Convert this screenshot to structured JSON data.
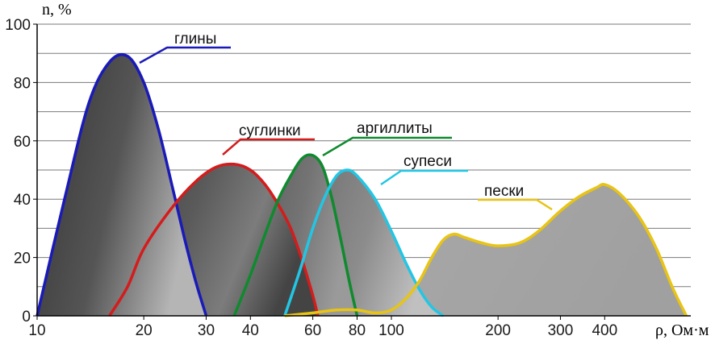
{
  "chart_data": {
    "type": "area",
    "title": "",
    "ylabel": "n, %",
    "xlabel": "ρ, Ом·м",
    "x_scale": "log",
    "ylim": [
      0,
      100
    ],
    "y_ticks": [
      0,
      20,
      40,
      60,
      80,
      100
    ],
    "x_ticks": [
      {
        "value": 10,
        "label": "10"
      },
      {
        "value": 20,
        "label": "20"
      },
      {
        "value": 30,
        "label": "30"
      },
      {
        "value": 40,
        "label": "40"
      },
      {
        "value": 60,
        "label": "60"
      },
      {
        "value": 80,
        "label": "80"
      },
      {
        "value": 100,
        "label": "100"
      },
      {
        "value": 200,
        "label": "200"
      },
      {
        "value": 300,
        "label": "300"
      },
      {
        "value": 400,
        "label": "400"
      }
    ],
    "grid": "horizontal",
    "series": [
      {
        "name": "глины",
        "color": "#1a1ab8",
        "x": [
          10,
          12,
          14,
          16,
          18,
          20,
          22,
          24,
          26,
          28,
          30
        ],
        "y": [
          0,
          41,
          73,
          87,
          89,
          80,
          64,
          45,
          27,
          12,
          0
        ]
      },
      {
        "name": "суглинки",
        "color": "#d41c1c",
        "x": [
          16,
          18,
          20,
          24,
          28,
          32,
          36,
          40,
          44,
          48,
          52,
          56,
          60,
          62
        ],
        "y": [
          0,
          10,
          23,
          37,
          46,
          51,
          52,
          50,
          45,
          38,
          30,
          19,
          7,
          0
        ]
      },
      {
        "name": "аргиллиты",
        "color": "#0f8a2e",
        "x": [
          36,
          40,
          44,
          48,
          52,
          56,
          60,
          64,
          68,
          72,
          76,
          80
        ],
        "y": [
          0,
          14,
          28,
          40,
          48,
          54,
          55,
          51,
          40,
          26,
          12,
          0
        ]
      },
      {
        "name": "супеси",
        "color": "#22c6e4",
        "x": [
          50,
          55,
          60,
          65,
          70,
          75,
          80,
          90,
          100,
          110,
          120,
          130,
          140
        ],
        "y": [
          0,
          15,
          30,
          41,
          48,
          50,
          48,
          40,
          29,
          18,
          9,
          3,
          0
        ]
      },
      {
        "name": "пески",
        "color": "#e8c414",
        "x": [
          50,
          60,
          70,
          80,
          90,
          100,
          110,
          120,
          130,
          140,
          150,
          160,
          180,
          200,
          230,
          260,
          300,
          340,
          380,
          400,
          440,
          500,
          560,
          620,
          680
        ],
        "y": [
          0,
          1,
          2,
          2,
          1,
          2,
          6,
          12,
          20,
          26,
          28,
          27,
          25,
          24,
          25,
          29,
          36,
          41,
          44,
          45,
          42,
          34,
          23,
          10,
          0
        ]
      }
    ],
    "labels": [
      {
        "text": "глины",
        "series": 0
      },
      {
        "text": "суглинки",
        "series": 1
      },
      {
        "text": "аргиллиты",
        "series": 2
      },
      {
        "text": "супеси",
        "series": 3
      },
      {
        "text": "пески",
        "series": 4
      }
    ]
  }
}
